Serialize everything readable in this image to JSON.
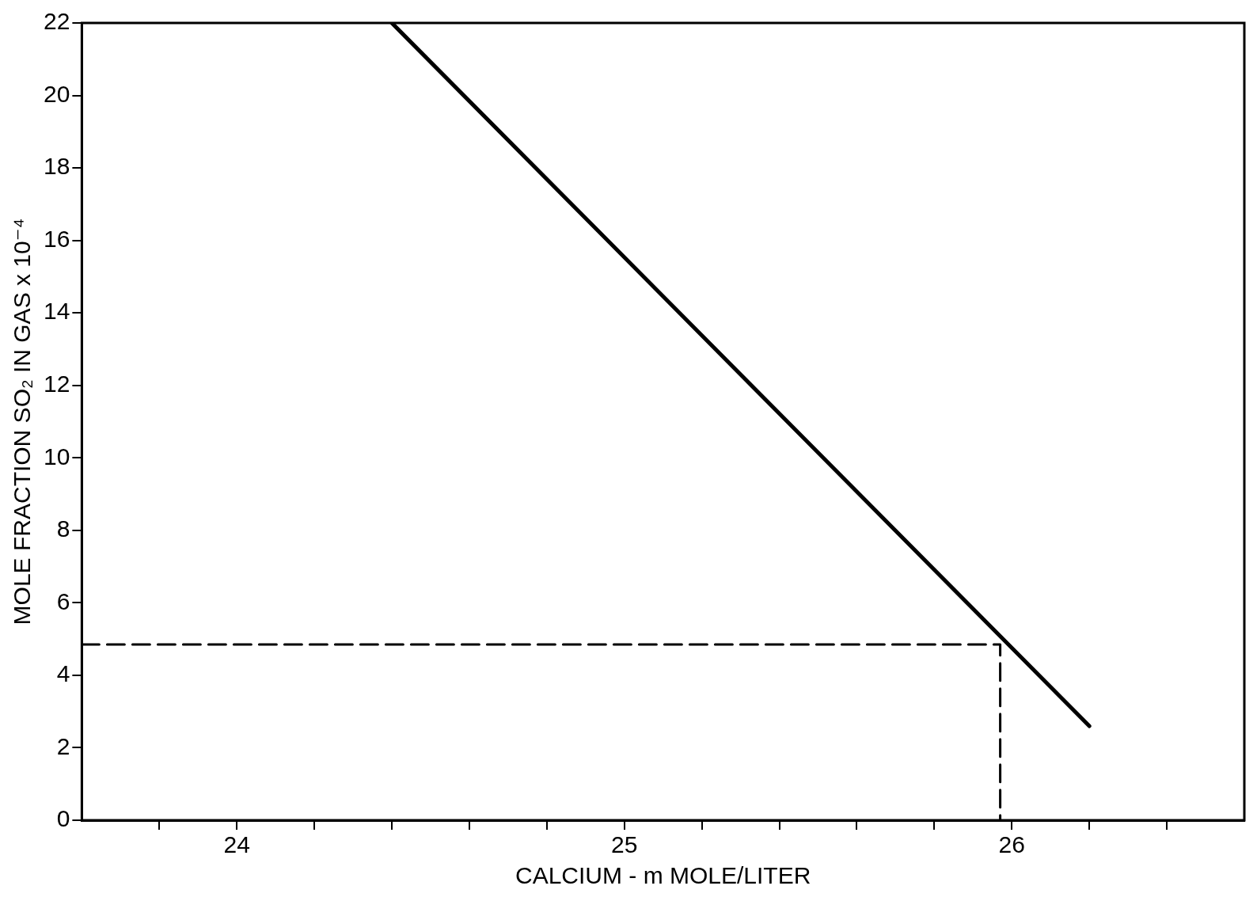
{
  "chart_data": {
    "type": "line",
    "xlabel": "CALCIUM - m MOLE/LITER",
    "ylabel": "MOLE FRACTION SO₂ IN GAS x 10⁻⁴",
    "xlim": [
      23.6,
      26.6
    ],
    "xticks": [
      {
        "value": 23.8,
        "label": null
      },
      24,
      {
        "value": 24.2,
        "label": null
      },
      {
        "value": 24.4,
        "label": null
      },
      {
        "value": 24.6,
        "label": null
      },
      {
        "value": 24.8,
        "label": null
      },
      25,
      {
        "value": 25.2,
        "label": null
      },
      {
        "value": 25.4,
        "label": null
      },
      {
        "value": 25.6,
        "label": null
      },
      {
        "value": 25.8,
        "label": null
      },
      26,
      {
        "value": 26.2,
        "label": null
      },
      {
        "value": 26.4,
        "label": null
      }
    ],
    "ylim": [
      0,
      22
    ],
    "yticks": [
      0,
      2,
      4,
      6,
      8,
      10,
      12,
      14,
      16,
      18,
      20,
      22
    ],
    "grid": false,
    "legend": false,
    "marker": "none",
    "series": [
      {
        "color": "#000000",
        "line_style": "solid",
        "x": [
          24.4,
          26.2
        ],
        "values": [
          22,
          2.6
        ]
      },
      {
        "color": "#000000",
        "line_style": "dashed",
        "x": [
          23.6,
          25.97,
          25.97
        ],
        "values": [
          4.85,
          4.85,
          0
        ]
      }
    ]
  }
}
